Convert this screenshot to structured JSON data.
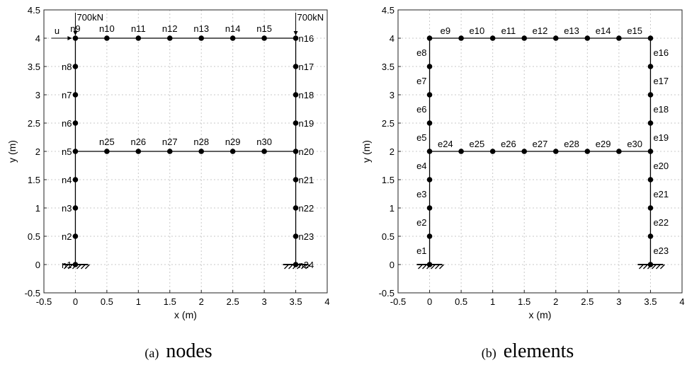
{
  "panels": [
    {
      "id": "nodes",
      "caption_prefix": "(a)",
      "caption_word": "nodes",
      "xlabel": "x (m)",
      "ylabel": "y (m)",
      "xlim": [
        -0.5,
        4
      ],
      "ylim": [
        -0.5,
        4.5
      ],
      "xticks": [
        "-0.5",
        "0",
        "0.5",
        "1",
        "1.5",
        "2",
        "2.5",
        "3",
        "3.5",
        "4"
      ],
      "yticks": [
        "-0.5",
        "0",
        "0.5",
        "1",
        "1.5",
        "2",
        "2.5",
        "3",
        "3.5",
        "4",
        "4.5"
      ],
      "loads": [
        {
          "label": "700kN",
          "x": 0,
          "y": 4
        },
        {
          "label": "700kN",
          "x": 3.5,
          "y": 4
        }
      ],
      "disp_label": "u",
      "nodes": [
        {
          "label": "n1",
          "x": 0,
          "y": 0,
          "side": "left"
        },
        {
          "label": "n2",
          "x": 0,
          "y": 0.5,
          "side": "left"
        },
        {
          "label": "n3",
          "x": 0,
          "y": 1,
          "side": "left"
        },
        {
          "label": "n4",
          "x": 0,
          "y": 1.5,
          "side": "left"
        },
        {
          "label": "n5",
          "x": 0,
          "y": 2,
          "side": "left"
        },
        {
          "label": "n6",
          "x": 0,
          "y": 2.5,
          "side": "left"
        },
        {
          "label": "n7",
          "x": 0,
          "y": 3,
          "side": "left"
        },
        {
          "label": "n8",
          "x": 0,
          "y": 3.5,
          "side": "left"
        },
        {
          "label": "n9",
          "x": 0,
          "y": 4,
          "side": "top"
        },
        {
          "label": "n10",
          "x": 0.5,
          "y": 4,
          "side": "top"
        },
        {
          "label": "n11",
          "x": 1,
          "y": 4,
          "side": "top"
        },
        {
          "label": "n12",
          "x": 1.5,
          "y": 4,
          "side": "top"
        },
        {
          "label": "n13",
          "x": 2,
          "y": 4,
          "side": "top"
        },
        {
          "label": "n14",
          "x": 2.5,
          "y": 4,
          "side": "top"
        },
        {
          "label": "n15",
          "x": 3,
          "y": 4,
          "side": "top"
        },
        {
          "label": "n16",
          "x": 3.5,
          "y": 4,
          "side": "right"
        },
        {
          "label": "n17",
          "x": 3.5,
          "y": 3.5,
          "side": "right"
        },
        {
          "label": "n18",
          "x": 3.5,
          "y": 3,
          "side": "right"
        },
        {
          "label": "n19",
          "x": 3.5,
          "y": 2.5,
          "side": "right"
        },
        {
          "label": "n20",
          "x": 3.5,
          "y": 2,
          "side": "right"
        },
        {
          "label": "n21",
          "x": 3.5,
          "y": 1.5,
          "side": "right"
        },
        {
          "label": "n22",
          "x": 3.5,
          "y": 1,
          "side": "right"
        },
        {
          "label": "n23",
          "x": 3.5,
          "y": 0.5,
          "side": "right"
        },
        {
          "label": "n24",
          "x": 3.5,
          "y": 0,
          "side": "right"
        },
        {
          "label": "n25",
          "x": 0.5,
          "y": 2,
          "side": "top"
        },
        {
          "label": "n26",
          "x": 1,
          "y": 2,
          "side": "top"
        },
        {
          "label": "n27",
          "x": 1.5,
          "y": 2,
          "side": "top"
        },
        {
          "label": "n28",
          "x": 2,
          "y": 2,
          "side": "top"
        },
        {
          "label": "n29",
          "x": 2.5,
          "y": 2,
          "side": "top"
        },
        {
          "label": "n30",
          "x": 3,
          "y": 2,
          "side": "top"
        }
      ]
    },
    {
      "id": "elements",
      "caption_prefix": "(b)",
      "caption_word": "elements",
      "xlabel": "x (m)",
      "ylabel": "y (m)",
      "xlim": [
        -0.5,
        4
      ],
      "ylim": [
        -0.5,
        4.5
      ],
      "xticks": [
        "-0.5",
        "0",
        "0.5",
        "1",
        "1.5",
        "2",
        "2.5",
        "3",
        "3.5",
        "4"
      ],
      "yticks": [
        "-0.5",
        "0",
        "0.5",
        "1",
        "1.5",
        "2",
        "2.5",
        "3",
        "3.5",
        "4",
        "4.5"
      ],
      "elements": [
        {
          "label": "e1",
          "x": 0,
          "y": 0.25,
          "side": "left"
        },
        {
          "label": "e2",
          "x": 0,
          "y": 0.75,
          "side": "left"
        },
        {
          "label": "e3",
          "x": 0,
          "y": 1.25,
          "side": "left"
        },
        {
          "label": "e4",
          "x": 0,
          "y": 1.75,
          "side": "left"
        },
        {
          "label": "e5",
          "x": 0,
          "y": 2.25,
          "side": "left"
        },
        {
          "label": "e6",
          "x": 0,
          "y": 2.75,
          "side": "left"
        },
        {
          "label": "e7",
          "x": 0,
          "y": 3.25,
          "side": "left"
        },
        {
          "label": "e8",
          "x": 0,
          "y": 3.75,
          "side": "left"
        },
        {
          "label": "e9",
          "x": 0.25,
          "y": 4,
          "side": "top"
        },
        {
          "label": "e10",
          "x": 0.75,
          "y": 4,
          "side": "top"
        },
        {
          "label": "e11",
          "x": 1.25,
          "y": 4,
          "side": "top"
        },
        {
          "label": "e12",
          "x": 1.75,
          "y": 4,
          "side": "top"
        },
        {
          "label": "e13",
          "x": 2.25,
          "y": 4,
          "side": "top"
        },
        {
          "label": "e14",
          "x": 2.75,
          "y": 4,
          "side": "top"
        },
        {
          "label": "e15",
          "x": 3.25,
          "y": 4,
          "side": "top"
        },
        {
          "label": "e16",
          "x": 3.5,
          "y": 3.75,
          "side": "right"
        },
        {
          "label": "e17",
          "x": 3.5,
          "y": 3.25,
          "side": "right"
        },
        {
          "label": "e18",
          "x": 3.5,
          "y": 2.75,
          "side": "right"
        },
        {
          "label": "e19",
          "x": 3.5,
          "y": 2.25,
          "side": "right"
        },
        {
          "label": "e20",
          "x": 3.5,
          "y": 1.75,
          "side": "right"
        },
        {
          "label": "e21",
          "x": 3.5,
          "y": 1.25,
          "side": "right"
        },
        {
          "label": "e22",
          "x": 3.5,
          "y": 0.75,
          "side": "right"
        },
        {
          "label": "e23",
          "x": 3.5,
          "y": 0.25,
          "side": "right"
        },
        {
          "label": "e24",
          "x": 0.25,
          "y": 2,
          "side": "top"
        },
        {
          "label": "e25",
          "x": 0.75,
          "y": 2,
          "side": "top"
        },
        {
          "label": "e26",
          "x": 1.25,
          "y": 2,
          "side": "top"
        },
        {
          "label": "e27",
          "x": 1.75,
          "y": 2,
          "side": "top"
        },
        {
          "label": "e28",
          "x": 2.25,
          "y": 2,
          "side": "top"
        },
        {
          "label": "e29",
          "x": 2.75,
          "y": 2,
          "side": "top"
        },
        {
          "label": "e30",
          "x": 3.25,
          "y": 2,
          "side": "top"
        }
      ],
      "dots": [
        0,
        0.5,
        1,
        1.5,
        2,
        2.5,
        3,
        3.5,
        4
      ]
    }
  ]
}
